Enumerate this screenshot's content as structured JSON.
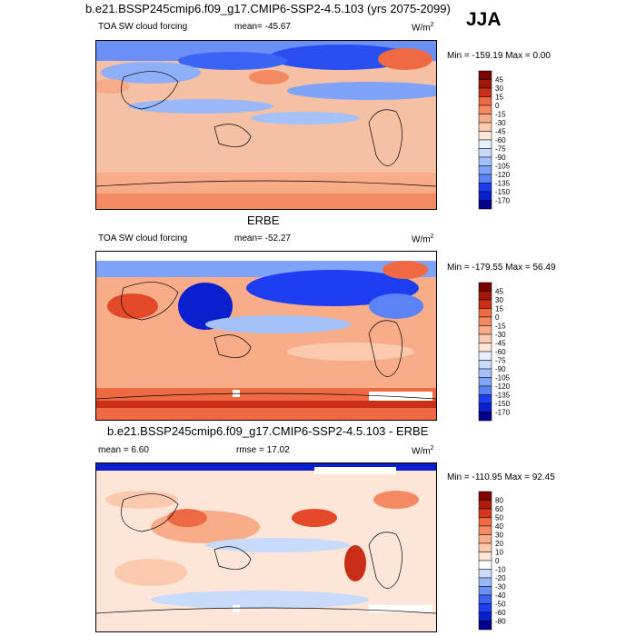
{
  "season": "JJA",
  "units_base": "W/m",
  "units_exp": "2",
  "colors": {
    "ramp_cloud": [
      "#00008b",
      "#0a1fcd",
      "#1d3ef0",
      "#3b63f4",
      "#5b83f6",
      "#7fa3f8",
      "#a5c1fa",
      "#c8dbfc",
      "#e6effd",
      "#ffffff",
      "#fde6d8",
      "#fbcaae",
      "#f8ac88",
      "#f48a62",
      "#ef6a43",
      "#e44a2a",
      "#c92e16",
      "#a0170a",
      "#780000"
    ],
    "ramp_diff": [
      "#00008b",
      "#0a1fcd",
      "#1d3ef0",
      "#3b63f4",
      "#6a8ff7",
      "#9bb9f9",
      "#c8dbfc",
      "#ffffff",
      "#fde6d8",
      "#fbcaae",
      "#f8ac88",
      "#f48a62",
      "#ef6a43",
      "#d8371e",
      "#b01c0c",
      "#800000"
    ]
  },
  "chart_data": [
    {
      "type": "heatmap",
      "title": "b.e21.BSSP245cmip6.f09_g17.CMIP6-SSP2-4.5.103 (yrs 2075-2099)",
      "field": "TOA SW cloud forcing",
      "mean_label": "mean= -45.67",
      "range_label": "Min = -159.19 Max =   0.00",
      "colorbar_levels": [
        "45",
        "30",
        "15",
        "0",
        "-15",
        "-30",
        "-45",
        "-60",
        "-75",
        "-90",
        "-105",
        "-120",
        "-135",
        "-150",
        "-170"
      ]
    },
    {
      "type": "heatmap",
      "title": "ERBE",
      "field": "TOA SW cloud forcing",
      "mean_label": "mean= -52.27",
      "range_label": "Min = -179.55 Max =  56.49",
      "colorbar_levels": [
        "45",
        "30",
        "15",
        "0",
        "-15",
        "-30",
        "-45",
        "-60",
        "-75",
        "-90",
        "-105",
        "-120",
        "-135",
        "-150",
        "-170"
      ]
    },
    {
      "type": "heatmap",
      "title": "b.e21.BSSP245cmip6.f09_g17.CMIP6-SSP2-4.5.103 - ERBE",
      "mean_label": "mean =   6.60",
      "rmse_label": "rmse =  17.02",
      "range_label": "Min = -110.95 Max =  92.45",
      "colorbar_levels": [
        "80",
        "60",
        "50",
        "40",
        "30",
        "20",
        "10",
        "0",
        "-10",
        "-20",
        "-30",
        "-40",
        "-50",
        "-60",
        "-80"
      ]
    }
  ]
}
